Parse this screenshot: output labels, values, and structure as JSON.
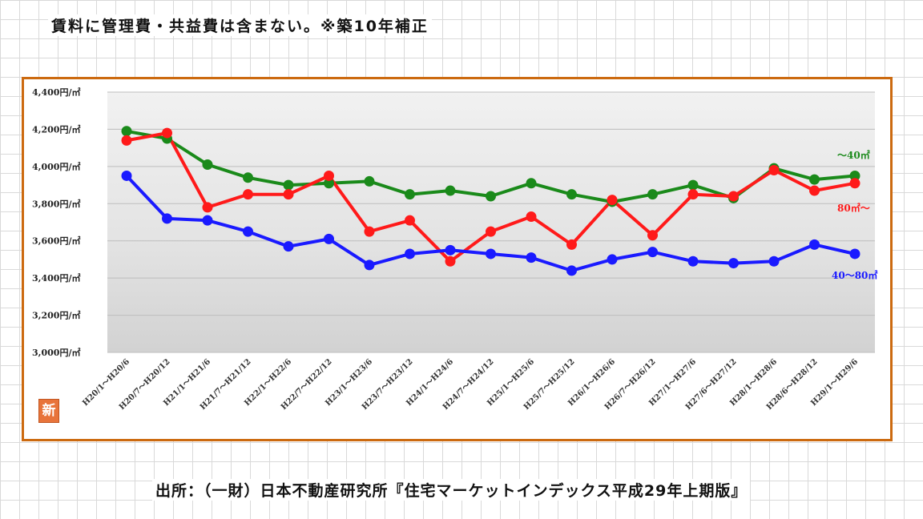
{
  "note": "賃料に管理費・共益費は含まない。※築10年補正",
  "source": "出所：（一財）日本不動産研究所『住宅マーケットインデックス平成29年上期版』",
  "badge": "新",
  "chart_data": {
    "type": "line",
    "title": "",
    "xlabel": "",
    "ylabel": "",
    "ylim": [
      3000,
      4400
    ],
    "y_ticks": [
      "3,000円/㎡",
      "3,200円/㎡",
      "3,400円/㎡",
      "3,600円/㎡",
      "3,800円/㎡",
      "4,000円/㎡",
      "4,200円/㎡",
      "4,400円/㎡"
    ],
    "categories": [
      "H20/1～H20/6",
      "H20/7～H20/12",
      "H21/1～H21/6",
      "H21/7～H21/12",
      "H22/1～H22/6",
      "H22/7～H22/12",
      "H23/1～H23/6",
      "H23/7～H23/12",
      "H24/1～H24/6",
      "H24/7～H24/12",
      "H25/1～H25/6",
      "H25/7～H25/12",
      "H26/1～H26/6",
      "H26/7～H26/12",
      "H27/1～H27/6",
      "H27/6～H27/12",
      "H28/1～H28/6",
      "H28/6～H28/12",
      "H29/1～H29/6"
    ],
    "grid": true,
    "series": [
      {
        "name": "～40㎡",
        "color": "#1a8a1a",
        "values": [
          4190,
          4150,
          4010,
          3940,
          3900,
          3910,
          3920,
          3850,
          3870,
          3840,
          3910,
          3850,
          3810,
          3850,
          3900,
          3830,
          3990,
          3930,
          3950
        ]
      },
      {
        "name": "80㎡～",
        "color": "#ff1a1a",
        "values": [
          4140,
          4180,
          3780,
          3850,
          3850,
          3950,
          3650,
          3710,
          3490,
          3650,
          3730,
          3580,
          3820,
          3630,
          3850,
          3840,
          3980,
          3870,
          3910
        ]
      },
      {
        "name": "40～80㎡",
        "color": "#1a1aff",
        "values": [
          3950,
          3720,
          3710,
          3650,
          3570,
          3610,
          3470,
          3530,
          3550,
          3530,
          3510,
          3440,
          3500,
          3540,
          3490,
          3480,
          3490,
          3580,
          3530
        ]
      }
    ]
  }
}
